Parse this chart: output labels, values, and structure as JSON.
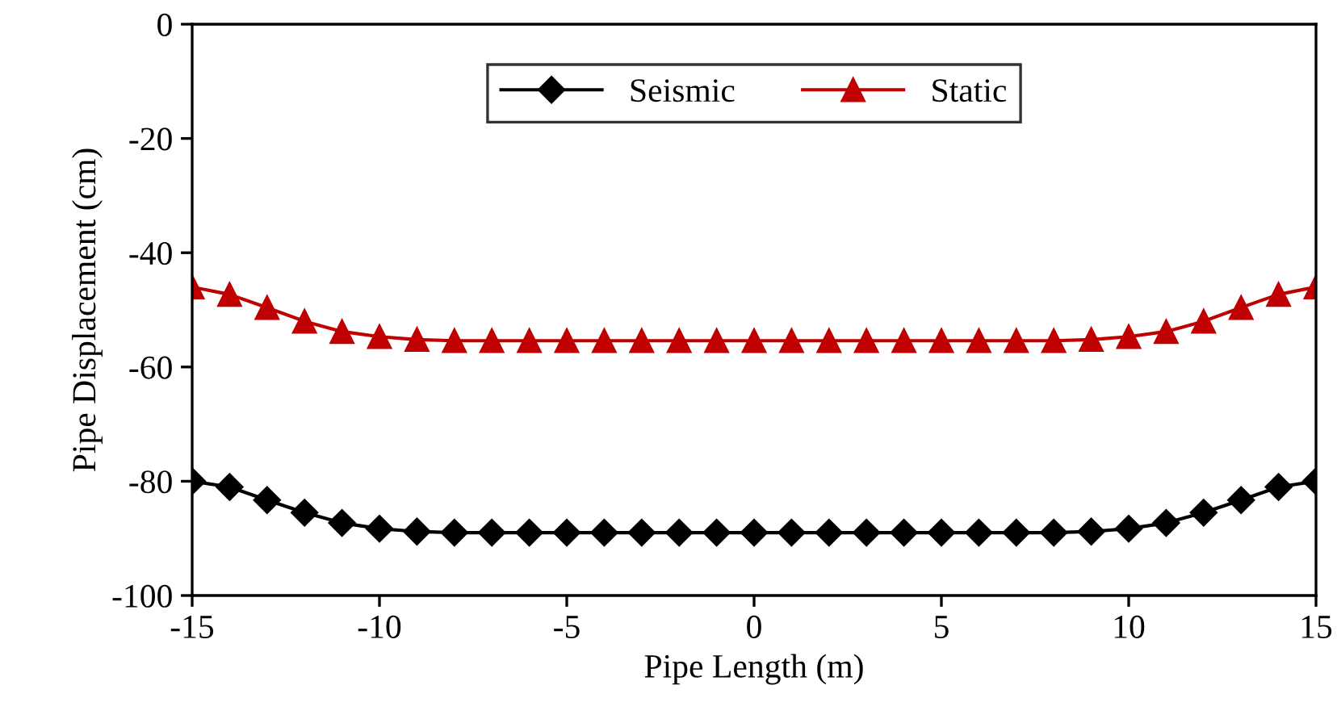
{
  "chart_data": {
    "type": "line",
    "xlabel": "Pipe Length (m)",
    "ylabel": "Pipe Displacement (cm)",
    "x": [
      -15,
      -14,
      -13,
      -12,
      -11,
      -10,
      -9,
      -8,
      -7,
      -6,
      -5,
      -4,
      -3,
      -2,
      -1,
      0,
      1,
      2,
      3,
      4,
      5,
      6,
      7,
      8,
      9,
      10,
      11,
      12,
      13,
      14,
      15
    ],
    "series": [
      {
        "name": "Seismic",
        "color": "#000000",
        "marker": "diamond",
        "values": [
          -80,
          -81,
          -83.3,
          -85.5,
          -87.3,
          -88.3,
          -88.8,
          -89,
          -89,
          -89,
          -89,
          -89,
          -89,
          -89,
          -89,
          -89,
          -89,
          -89,
          -89,
          -89,
          -89,
          -89,
          -89,
          -89,
          -88.8,
          -88.3,
          -87.3,
          -85.5,
          -83.3,
          -81,
          -80
        ]
      },
      {
        "name": "Static",
        "color": "#c00000",
        "marker": "triangle",
        "values": [
          -46,
          -47.3,
          -49.6,
          -52,
          -53.8,
          -54.7,
          -55.2,
          -55.4,
          -55.4,
          -55.4,
          -55.4,
          -55.4,
          -55.4,
          -55.4,
          -55.4,
          -55.4,
          -55.4,
          -55.4,
          -55.4,
          -55.4,
          -55.4,
          -55.4,
          -55.4,
          -55.4,
          -55.2,
          -54.7,
          -53.8,
          -52,
          -49.6,
          -47.3,
          -46
        ]
      }
    ],
    "xlim": [
      -15,
      15
    ],
    "xticks": [
      -15,
      -10,
      -5,
      0,
      5,
      10,
      15
    ],
    "ylim": [
      -100,
      0
    ],
    "yticks": [
      -100,
      -80,
      -60,
      -40,
      -20,
      0
    ],
    "grid": false,
    "legend": "top"
  }
}
